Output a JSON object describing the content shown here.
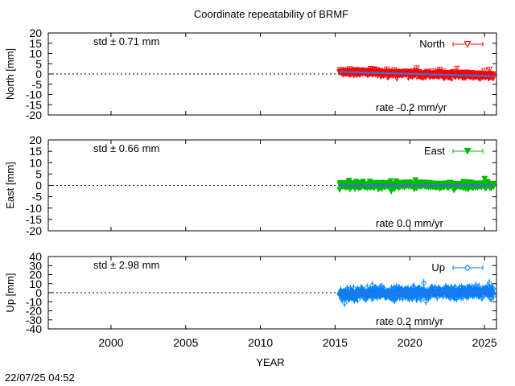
{
  "title": "Coordinate repeatability of BRMF",
  "timestamp": "22/07/25 04:52",
  "xlabel": "YEAR",
  "x_ticks": [
    2000,
    2005,
    2010,
    2015,
    2020,
    2025
  ],
  "chart_data": [
    {
      "type": "scatter",
      "series": [
        {
          "name": "North",
          "color": "#ff0000",
          "marker": "triangle-down-open",
          "x_range": [
            2015.3,
            2025.6
          ],
          "mean": 0.0,
          "trend_mm_per_yr": -0.2,
          "std": 0.71,
          "error_bar": 1.2
        }
      ],
      "ylabel": "North [mm]",
      "yticks": [
        "20",
        "15",
        "10",
        "5",
        "0",
        "-5",
        "-10",
        "-15",
        "-20"
      ],
      "ylim": [
        -20,
        20
      ],
      "xlim": [
        1995.8,
        2025.8
      ],
      "std_label": "std ± 0.71 mm",
      "rate_label": "rate -0.2 mm/yr",
      "zero_line": true
    },
    {
      "type": "scatter",
      "series": [
        {
          "name": "East",
          "color": "#00bb00",
          "marker": "triangle-down-filled",
          "x_range": [
            2015.3,
            2025.6
          ],
          "mean": 0.0,
          "trend_mm_per_yr": 0.0,
          "std": 0.66,
          "error_bar": 1.1
        }
      ],
      "ylabel": "East [mm]",
      "yticks": [
        "20",
        "15",
        "10",
        "5",
        "0",
        "-5",
        "-10",
        "-15",
        "-20"
      ],
      "ylim": [
        -20,
        20
      ],
      "xlim": [
        1995.8,
        2025.8
      ],
      "std_label": "std ± 0.66 mm",
      "rate_label": "rate  0.0 mm/yr",
      "zero_line": true
    },
    {
      "type": "scatter",
      "series": [
        {
          "name": "Up",
          "color": "#0080ff",
          "marker": "diamond-open",
          "x_range": [
            2015.3,
            2025.6
          ],
          "mean": 0.0,
          "trend_mm_per_yr": 0.2,
          "std": 2.98,
          "error_bar": 4.5
        }
      ],
      "ylabel": "Up [mm]",
      "yticks": [
        "40",
        "30",
        "20",
        "10",
        "0",
        "-10",
        "-20",
        "-30",
        "-40"
      ],
      "ylim": [
        -40,
        40
      ],
      "xlim": [
        1995.8,
        2025.8
      ],
      "std_label": "std ± 2.98 mm",
      "rate_label": "rate  0.2 mm/yr",
      "zero_line": true
    }
  ]
}
